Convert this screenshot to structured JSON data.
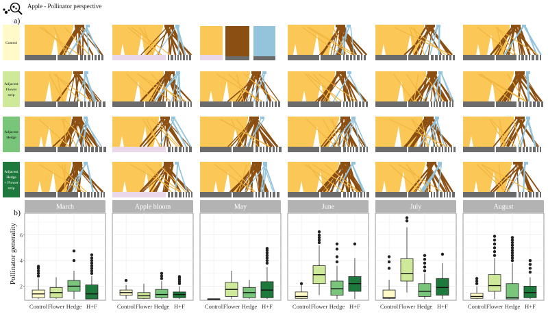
{
  "header": {
    "title": "Apple - Pollinator perspective",
    "panel_a_label": "a)",
    "panel_b_label": "b)"
  },
  "network_panel": {
    "rows": [
      {
        "label": [
          "Control"
        ],
        "color": "#fffac8"
      },
      {
        "label": [
          "Adjacent",
          "Flower",
          "strip"
        ],
        "color": "#cfe99a"
      },
      {
        "label": [
          "Adjacent",
          "Hedge"
        ],
        "color": "#79c57a"
      },
      {
        "label": [
          "Adjacent",
          "Hedge",
          "+ Flower",
          "strip"
        ],
        "color": "#1e7a3c"
      }
    ],
    "colors": {
      "apple": "#fbc756",
      "flower": "#8c4f12",
      "hedge": "#93c4dc",
      "pollinator_bar": "#6b6b6b",
      "lilac_bar": "#ead8ea"
    }
  },
  "chart_data": {
    "type": "boxplot",
    "ylabel": "Pollinator generality",
    "ylim": [
      0.9,
      7.7
    ],
    "yticks": [
      2,
      4,
      6
    ],
    "categories": [
      "Control",
      "Flower",
      "Hedge",
      "H+F"
    ],
    "category_colors": [
      "#fffac8",
      "#cfe99a",
      "#79c57a",
      "#1e7a3c"
    ],
    "facets": [
      {
        "title": "March",
        "boxes": [
          {
            "q1": 1.1,
            "med": 1.4,
            "q3": 1.7,
            "lo": 1.0,
            "hi": 2.6,
            "out": [
              2.8,
              3.0,
              3.2,
              3.4,
              3.55
            ]
          },
          {
            "q1": 1.1,
            "med": 1.5,
            "q3": 1.9,
            "lo": 1.0,
            "hi": 2.7,
            "out": []
          },
          {
            "q1": 1.6,
            "med": 2.0,
            "q3": 2.45,
            "lo": 1.0,
            "hi": 3.2,
            "out": [
              4.0,
              4.75
            ]
          },
          {
            "q1": 1.0,
            "med": 1.4,
            "q3": 2.1,
            "lo": 1.0,
            "hi": 2.8,
            "out": [
              3.0,
              3.2,
              3.4,
              3.6,
              3.8,
              4.0,
              4.2,
              4.45
            ]
          }
        ]
      },
      {
        "title": "Apple bloom",
        "boxes": [
          {
            "q1": 1.3,
            "med": 1.5,
            "q3": 1.7,
            "lo": 1.0,
            "hi": 2.1,
            "out": [
              2.45
            ]
          },
          {
            "q1": 1.05,
            "med": 1.25,
            "q3": 1.5,
            "lo": 1.0,
            "hi": 2.2,
            "out": []
          },
          {
            "q1": 1.1,
            "med": 1.35,
            "q3": 1.75,
            "lo": 1.0,
            "hi": 2.4,
            "out": [
              2.6,
              2.8,
              3.0
            ]
          },
          {
            "q1": 1.1,
            "med": 1.35,
            "q3": 1.55,
            "lo": 1.0,
            "hi": 2.0,
            "out": [
              2.2,
              2.35,
              2.5,
              2.65,
              2.75
            ]
          }
        ]
      },
      {
        "title": "May",
        "boxes": [
          {
            "q1": 1.0,
            "med": 1.0,
            "q3": 1.0,
            "lo": 1.0,
            "hi": 1.0,
            "out": []
          },
          {
            "q1": 1.2,
            "med": 1.75,
            "q3": 2.3,
            "lo": 1.0,
            "hi": 3.2,
            "out": []
          },
          {
            "q1": 1.1,
            "med": 1.5,
            "q3": 1.9,
            "lo": 1.0,
            "hi": 2.5,
            "out": []
          },
          {
            "q1": 1.1,
            "med": 1.7,
            "q3": 2.35,
            "lo": 1.0,
            "hi": 3.5,
            "out": [
              3.8,
              4.0,
              4.2,
              4.4,
              4.6,
              4.8,
              4.95
            ]
          }
        ]
      },
      {
        "title": "June",
        "boxes": [
          {
            "q1": 1.05,
            "med": 1.2,
            "q3": 1.55,
            "lo": 1.0,
            "hi": 2.1,
            "out": [
              2.2
            ]
          },
          {
            "q1": 2.2,
            "med": 2.9,
            "q3": 3.6,
            "lo": 1.3,
            "hi": 5.2,
            "out": [
              5.4,
              5.6,
              5.8,
              6.0,
              6.25
            ]
          },
          {
            "q1": 1.3,
            "med": 1.8,
            "q3": 2.4,
            "lo": 1.0,
            "hi": 3.6,
            "out": [
              3.9,
              4.3,
              4.9,
              5.3
            ]
          },
          {
            "q1": 1.6,
            "med": 2.2,
            "q3": 2.75,
            "lo": 1.0,
            "hi": 4.2,
            "out": [
              5.3
            ]
          }
        ]
      },
      {
        "title": "July",
        "boxes": [
          {
            "q1": 1.05,
            "med": 1.1,
            "q3": 1.7,
            "lo": 1.0,
            "hi": 2.5,
            "out": [
              3.4,
              3.9,
              4.3
            ]
          },
          {
            "q1": 2.4,
            "med": 3.0,
            "q3": 4.15,
            "lo": 1.5,
            "hi": 6.6,
            "out": [
              7.1,
              7.35
            ]
          },
          {
            "q1": 1.2,
            "med": 1.6,
            "q3": 2.2,
            "lo": 1.0,
            "hi": 3.0,
            "out": [
              3.2,
              3.5,
              3.8,
              4.1,
              4.4
            ]
          },
          {
            "q1": 1.3,
            "med": 1.9,
            "q3": 2.6,
            "lo": 1.0,
            "hi": 3.8,
            "out": [
              4.5
            ]
          }
        ]
      },
      {
        "title": "August",
        "boxes": [
          {
            "q1": 1.05,
            "med": 1.2,
            "q3": 1.45,
            "lo": 1.0,
            "hi": 2.0,
            "out": [
              2.2,
              2.4,
              2.6
            ]
          },
          {
            "q1": 1.6,
            "med": 2.05,
            "q3": 2.9,
            "lo": 1.0,
            "hi": 4.2,
            "out": [
              4.4,
              4.7,
              5.0,
              5.3,
              5.6,
              5.9
            ]
          },
          {
            "q1": 1.0,
            "med": 1.1,
            "q3": 2.2,
            "lo": 1.0,
            "hi": 3.8,
            "out": [
              4.0,
              4.2,
              4.4,
              4.6,
              4.8,
              5.0,
              5.2,
              5.4,
              5.6,
              5.8
            ]
          },
          {
            "q1": 1.1,
            "med": 1.5,
            "q3": 2.0,
            "lo": 1.0,
            "hi": 2.7,
            "out": [
              3.1,
              3.4,
              3.7,
              4.0
            ]
          }
        ]
      }
    ]
  }
}
